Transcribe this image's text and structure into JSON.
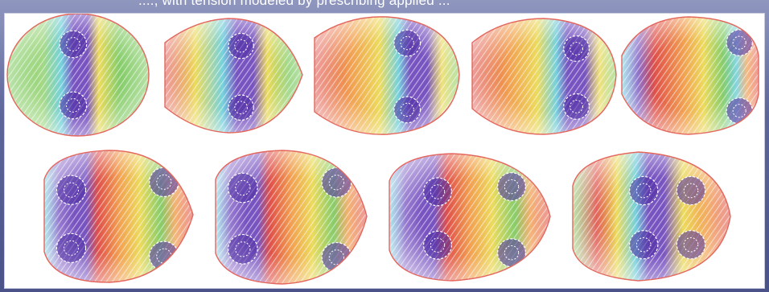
{
  "caption": "...., with tension modeled by prescribing applied ...",
  "figure": {
    "frame_count": 9,
    "rows": 2,
    "colors": {
      "boundary": "#e4675e",
      "low": "#5b2fb3",
      "cyan": "#56c7d6",
      "green": "#6cc24a",
      "yellow": "#e8d33a",
      "orange": "#ef8a2b",
      "high": "#d92a22",
      "background": "#ffffff"
    },
    "frames": [
      {
        "shape": "circle",
        "vortices": "left",
        "inflow": "none"
      },
      {
        "shape": "flat-left",
        "vortices": "center",
        "inflow": "weak"
      },
      {
        "shape": "flat-left",
        "vortices": "center",
        "inflow": "medium"
      },
      {
        "shape": "flat-left",
        "vortices": "right",
        "inflow": "strong"
      },
      {
        "shape": "flat-sides",
        "vortices": "right",
        "inflow": "strong"
      },
      {
        "shape": "egg-right",
        "vortices": "left",
        "inflow": "strong"
      },
      {
        "shape": "egg-right",
        "vortices": "left",
        "inflow": "strong"
      },
      {
        "shape": "egg-right",
        "vortices": "left",
        "inflow": "medium"
      },
      {
        "shape": "egg-right",
        "vortices": "center",
        "inflow": "medium"
      }
    ]
  }
}
